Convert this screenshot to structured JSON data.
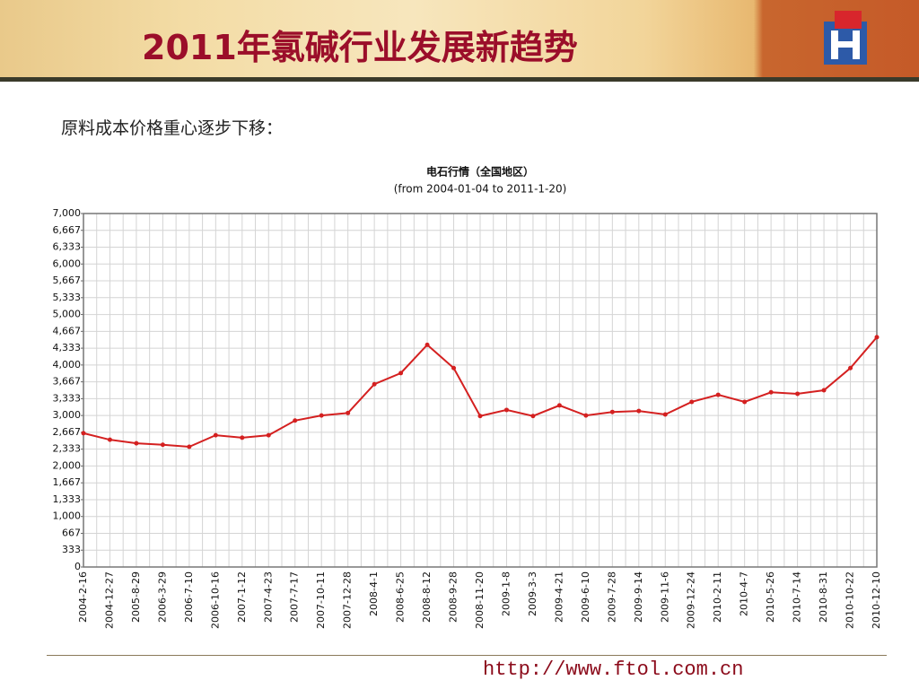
{
  "header": {
    "title": "2011年氯碱行业发展新趋势"
  },
  "intro": "原料成本价格重心逐步下移：",
  "chart_data": {
    "type": "line",
    "title": "电石行情（全国地区）",
    "subtitle": "(from 2004-01-04 to 2011-1-20)",
    "categories": [
      "2004-2-16",
      "2004-12-27",
      "2005-8-29",
      "2006-3-29",
      "2006-7-10",
      "2006-10-16",
      "2007-1-12",
      "2007-4-23",
      "2007-7-17",
      "2007-10-11",
      "2007-12-28",
      "2008-4-1",
      "2008-6-25",
      "2008-8-12",
      "2008-9-28",
      "2008-11-20",
      "2009-1-8",
      "2009-3-3",
      "2009-4-21",
      "2009-6-10",
      "2009-7-28",
      "2009-9-14",
      "2009-11-6",
      "2009-12-24",
      "2010-2-11",
      "2010-4-7",
      "2010-5-26",
      "2010-7-14",
      "2010-8-31",
      "2010-10-22",
      "2010-12-10"
    ],
    "values": [
      2650,
      2520,
      2450,
      2420,
      2380,
      2610,
      2560,
      2610,
      2900,
      3000,
      3050,
      3620,
      3840,
      4400,
      3940,
      2990,
      3110,
      2990,
      3200,
      3000,
      3070,
      3090,
      3020,
      3270,
      3410,
      3270,
      3460,
      3430,
      3500,
      3940,
      4550
    ],
    "color": "#d42020",
    "ylim": [
      0,
      7000
    ],
    "yticks": [
      0,
      {
        "value": 333.333,
        "label": "333"
      },
      {
        "value": 666.667,
        "label": "667"
      },
      {
        "value": 1000,
        "label": "1,000"
      },
      {
        "value": 1333.333,
        "label": "1,333"
      },
      {
        "value": 1666.667,
        "label": "1,667"
      },
      {
        "value": 2000,
        "label": "2,000"
      },
      {
        "value": 2333.333,
        "label": "2,333"
      },
      {
        "value": 2666.667,
        "label": "2,667"
      },
      {
        "value": 3000,
        "label": "3,000"
      },
      {
        "value": 3333.333,
        "label": "3,333"
      },
      {
        "value": 3666.667,
        "label": "3,667"
      },
      {
        "value": 4000,
        "label": "4,000"
      },
      {
        "value": 4333.333,
        "label": "4,333"
      },
      {
        "value": 4666.667,
        "label": "4,667"
      },
      {
        "value": 5000,
        "label": "5,000"
      },
      {
        "value": 5333.333,
        "label": "5,333"
      },
      {
        "value": 5666.667,
        "label": "5,667"
      },
      {
        "value": 6000,
        "label": "6,000"
      },
      {
        "value": 6333.333,
        "label": "6,333"
      },
      {
        "value": 6666.667,
        "label": "6,667"
      },
      {
        "value": 7000,
        "label": "7,000"
      }
    ],
    "grid": true
  },
  "footer": {
    "url": "http://www.ftol.com.cn"
  }
}
